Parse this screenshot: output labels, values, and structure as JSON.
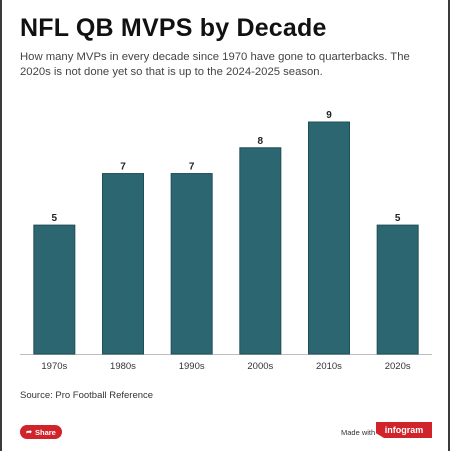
{
  "title": "NFL QB MVPS by Decade",
  "subtitle": "How many MVPs in every decade since 1970 have gone to quarterbacks. The 2020s is not done yet so that is up to the 2024-2025 season.",
  "source": "Source: Pro Football Reference",
  "footer": {
    "share_label": "Share",
    "made_with": "Made with",
    "brand": "infogram"
  },
  "colors": {
    "bar": "#2c6670",
    "bar_outline": "#1f4e57",
    "brand_red": "#d0232a"
  },
  "chart_data": {
    "type": "bar",
    "title": "NFL QB MVPS by Decade",
    "categories": [
      "1970s",
      "1980s",
      "1990s",
      "2000s",
      "2010s",
      "2020s"
    ],
    "values": [
      5,
      7,
      7,
      8,
      9,
      5
    ],
    "xlabel": "",
    "ylabel": "",
    "ylim": [
      0,
      9
    ],
    "data_labels": true,
    "grid": false,
    "legend": "none"
  }
}
